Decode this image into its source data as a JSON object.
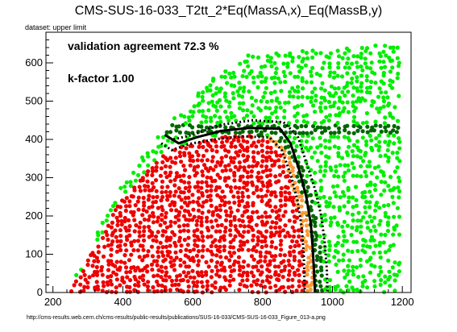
{
  "title": "CMS-SUS-16-033_T2tt_2*Eq(MassA,x)_Eq(MassB,y)",
  "dataset_label": "dataset: upper limit",
  "url_caption": "http://cms-results.web.cern.ch/cms-results/public-results/publications/SUS-16-033/CMS-SUS-16-033_Figure_013-a.png",
  "annotations": {
    "agreement": "validation agreement 72.3 %",
    "kfactor": "k-factor 1.00"
  },
  "colors": {
    "excluded": "#ee0000",
    "allowed": "#00ee00",
    "excluded_border": "#ff9933",
    "allowed_border": "#006600",
    "curves": "#000000"
  },
  "chart_data": {
    "type": "scatter",
    "title": "CMS-SUS-16-033_T2tt_2*Eq(MassA,x)_Eq(MassB,y)",
    "xlabel": "",
    "ylabel": "",
    "xlim": [
      180,
      1225
    ],
    "ylim": [
      0,
      680
    ],
    "xticks": [
      200,
      400,
      600,
      800,
      1000,
      1200
    ],
    "yticks": [
      0,
      100,
      200,
      300,
      400,
      500,
      600
    ],
    "grid": false,
    "legend": "none",
    "point_classes": [
      "excluded",
      "excluded_border",
      "allowed_border",
      "allowed"
    ],
    "series": [
      {
        "name": "",
        "style": "solid",
        "points": [
          [
            520,
            412
          ],
          [
            560,
            390
          ],
          [
            610,
            405
          ],
          [
            680,
            422
          ],
          [
            760,
            430
          ],
          [
            850,
            428
          ],
          [
            880,
            390
          ],
          [
            905,
            320
          ],
          [
            925,
            250
          ],
          [
            938,
            180
          ],
          [
            944,
            110
          ],
          [
            948,
            40
          ],
          [
            950,
            0
          ]
        ]
      },
      {
        "name": "",
        "style": "dotted",
        "points": [
          [
            510,
            390
          ],
          [
            540,
            372
          ],
          [
            590,
            388
          ],
          [
            660,
            400
          ],
          [
            740,
            408
          ],
          [
            820,
            405
          ],
          [
            855,
            372
          ],
          [
            880,
            310
          ],
          [
            900,
            240
          ],
          [
            912,
            170
          ],
          [
            918,
            100
          ],
          [
            920,
            30
          ],
          [
            921,
            0
          ]
        ]
      },
      {
        "name": "",
        "style": "dotted",
        "points": [
          [
            545,
            400
          ],
          [
            600,
            412
          ],
          [
            680,
            438
          ],
          [
            770,
            450
          ],
          [
            860,
            445
          ],
          [
            900,
            410
          ],
          [
            925,
            340
          ],
          [
            950,
            270
          ],
          [
            968,
            200
          ],
          [
            978,
            130
          ],
          [
            984,
            60
          ],
          [
            986,
            0
          ]
        ]
      }
    ],
    "region_model": {
      "excluded_boundary": [
        [
          250,
          0
        ],
        [
          300,
          90
        ],
        [
          400,
          250
        ],
        [
          520,
          365
        ],
        [
          600,
          390
        ],
        [
          700,
          408
        ],
        [
          780,
          412
        ],
        [
          830,
          405
        ],
        [
          870,
          370
        ],
        [
          900,
          300
        ],
        [
          920,
          230
        ],
        [
          935,
          160
        ],
        [
          945,
          80
        ],
        [
          950,
          0
        ]
      ],
      "allowed_extent": [
        [
          235,
          0
        ],
        [
          290,
          90
        ],
        [
          420,
          320
        ],
        [
          560,
          470
        ],
        [
          660,
          560
        ],
        [
          760,
          620
        ],
        [
          1180,
          650
        ],
        [
          1195,
          0
        ]
      ],
      "border_band_width": 25
    }
  }
}
